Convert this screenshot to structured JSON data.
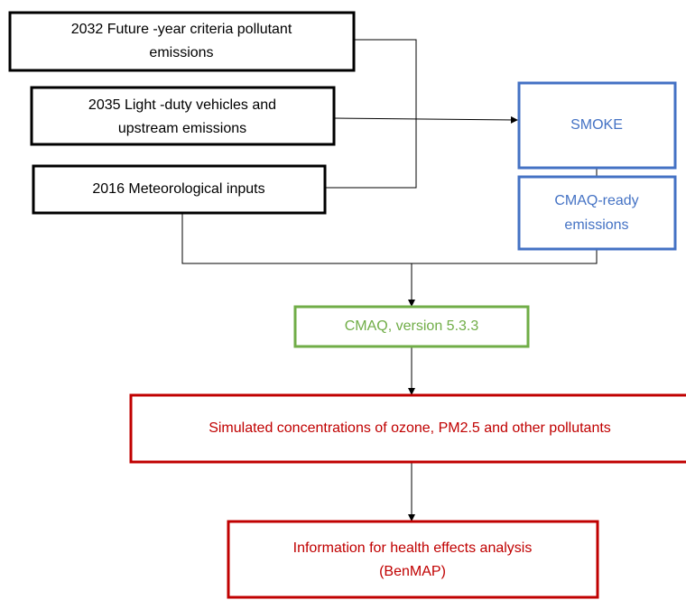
{
  "nodes": [
    {
      "lines": [
        "2032 Future -year criteria pollutant",
        "emissions"
      ]
    },
    {
      "lines": [
        "2035 Light -duty vehicles and",
        "upstream emissions"
      ]
    },
    {
      "lines": [
        "2016 Meteorological inputs"
      ]
    },
    {
      "lines": [
        "SMOKE"
      ]
    },
    {
      "lines": [
        "CMAQ-ready",
        "emissions"
      ]
    },
    {
      "lines": [
        "CMAQ, version 5.3.3"
      ]
    },
    {
      "lines": [
        "Simulated concentrations of ozone, PM2.5 and other pollutants"
      ]
    },
    {
      "lines": [
        "Information for health effects analysis",
        "(BenMAP)"
      ]
    }
  ]
}
